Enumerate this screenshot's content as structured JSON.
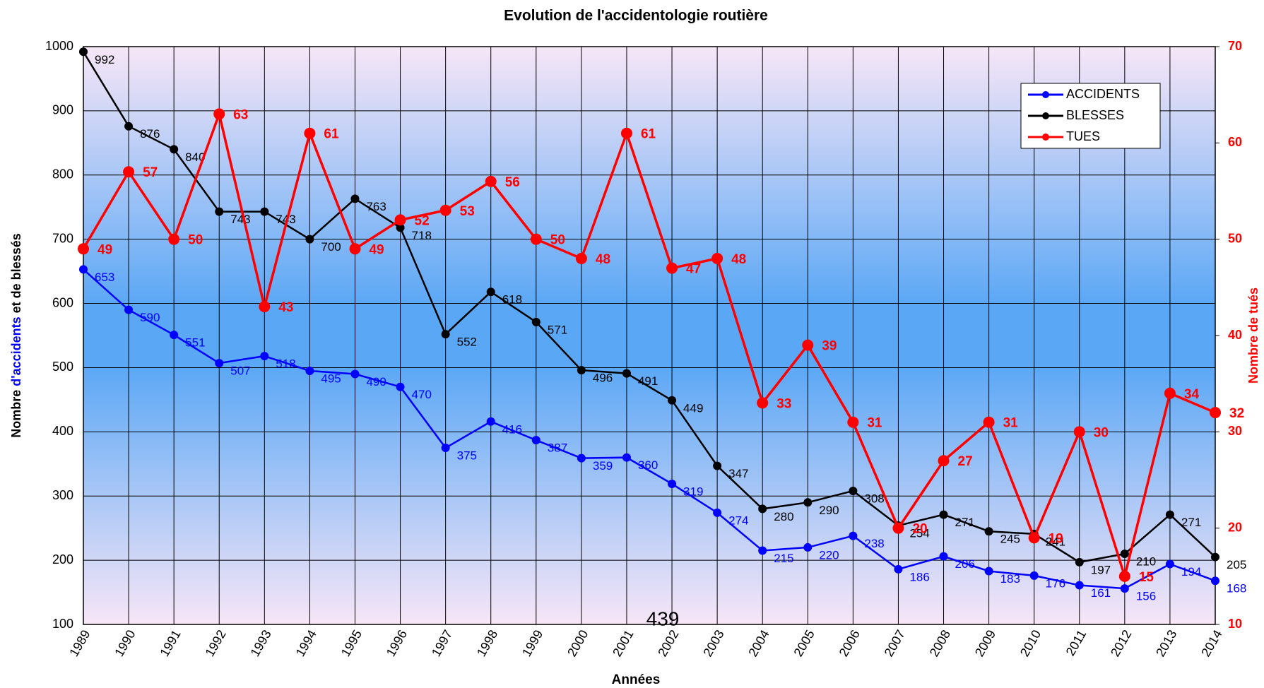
{
  "chart_data": {
    "type": "line",
    "title": "Evolution de l'accidentologie routière",
    "ylabel_parts": [
      "Nombre",
      "d'accidents",
      "et de blessés"
    ],
    "y2label": "Nombre de tués",
    "xlabel": "Années",
    "annotation": "439",
    "categories": [
      "1989",
      "1990",
      "1991",
      "1992",
      "1993",
      "1994",
      "1995",
      "1996",
      "1997",
      "1998",
      "1999",
      "2000",
      "2001",
      "2002",
      "2003",
      "2004",
      "2005",
      "2006",
      "2007",
      "2008",
      "2009",
      "2010",
      "2011",
      "2012",
      "2013",
      "2014"
    ],
    "series": [
      {
        "name": "ACCIDENTS",
        "color": "#0000ff",
        "axis": "y",
        "values": [
          653,
          590,
          551,
          507,
          518,
          495,
          490,
          470,
          375,
          416,
          387,
          359,
          360,
          319,
          274,
          215,
          220,
          238,
          186,
          206,
          183,
          176,
          161,
          156,
          194,
          168
        ]
      },
      {
        "name": "BLESSES",
        "color": "#000000",
        "axis": "y",
        "values": [
          992,
          876,
          840,
          743,
          743,
          700,
          763,
          718,
          552,
          618,
          571,
          496,
          491,
          449,
          347,
          280,
          290,
          308,
          254,
          271,
          245,
          241,
          197,
          210,
          271,
          205
        ]
      },
      {
        "name": "TUES",
        "color": "#ff0000",
        "axis": "y2",
        "values": [
          49,
          57,
          50,
          63,
          43,
          61,
          49,
          52,
          53,
          56,
          50,
          48,
          61,
          47,
          48,
          33,
          39,
          31,
          20,
          27,
          31,
          19,
          30,
          15,
          34,
          32
        ]
      }
    ],
    "ylim": [
      100,
      1000
    ],
    "yticks": [
      100,
      200,
      300,
      400,
      500,
      600,
      700,
      800,
      900,
      1000
    ],
    "y2lim": [
      10,
      70
    ],
    "y2ticks": [
      10,
      20,
      30,
      40,
      50,
      60,
      70
    ],
    "grid": true,
    "legend": "upper right"
  }
}
